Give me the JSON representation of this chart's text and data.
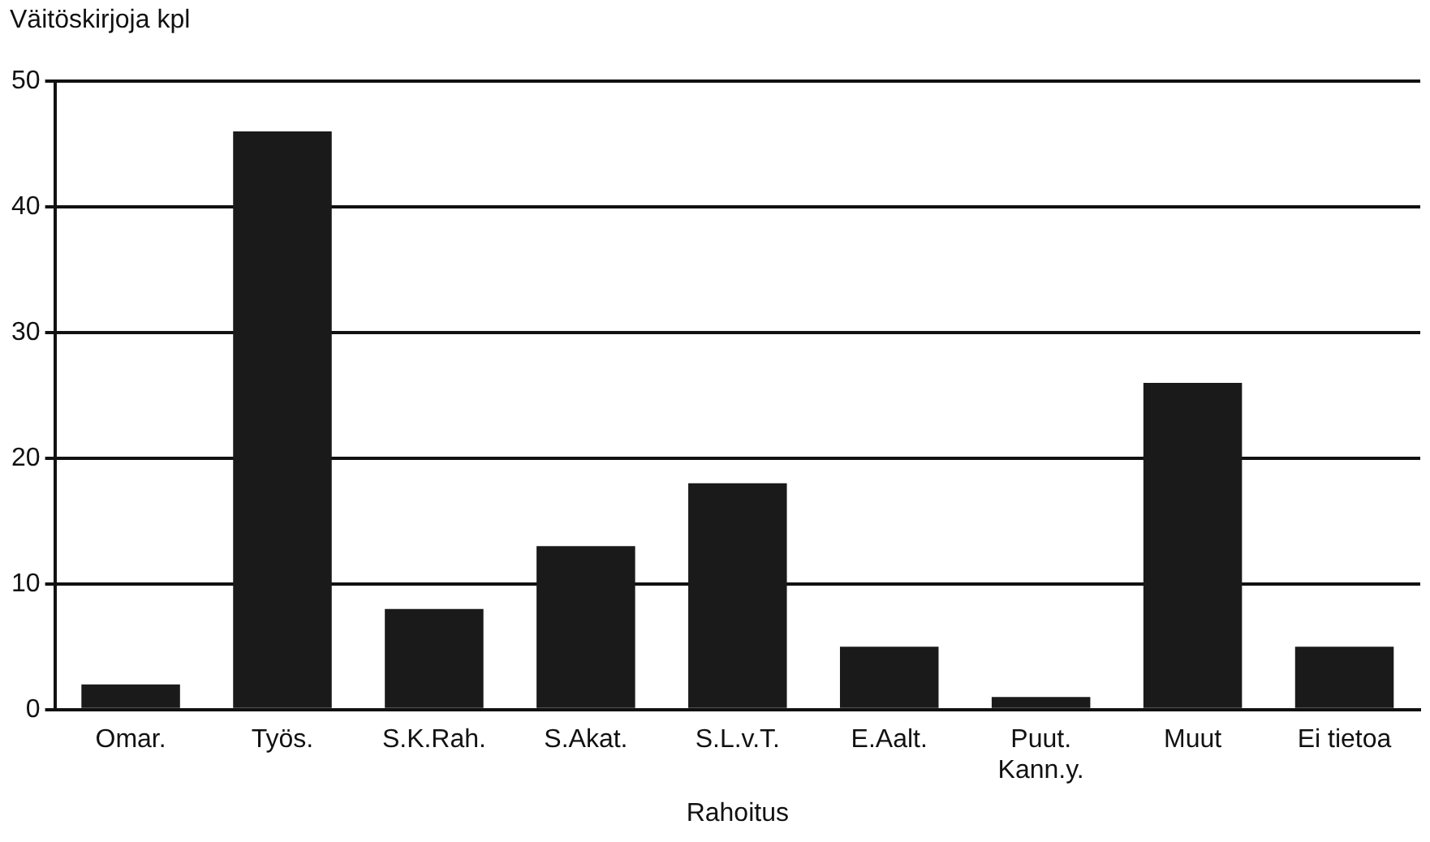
{
  "chart_data": {
    "type": "bar",
    "ylabel": "Väitöskirjoja kpl",
    "xlabel": "Rahoitus",
    "categories": [
      "Omar.",
      "Työs.",
      "S.K.Rah.",
      "S.Akat.",
      "S.L.v.T.",
      "E.Aalt.",
      "Puut.\nKann.y.",
      "Muut",
      "Ei tietoa"
    ],
    "values": [
      2,
      46,
      8,
      13,
      18,
      5,
      1,
      26,
      5
    ],
    "color": "#1a1a1a",
    "ylim": [
      0,
      50
    ],
    "yticks": [
      0,
      10,
      20,
      30,
      40,
      50
    ],
    "grid": "y",
    "legend": false
  }
}
